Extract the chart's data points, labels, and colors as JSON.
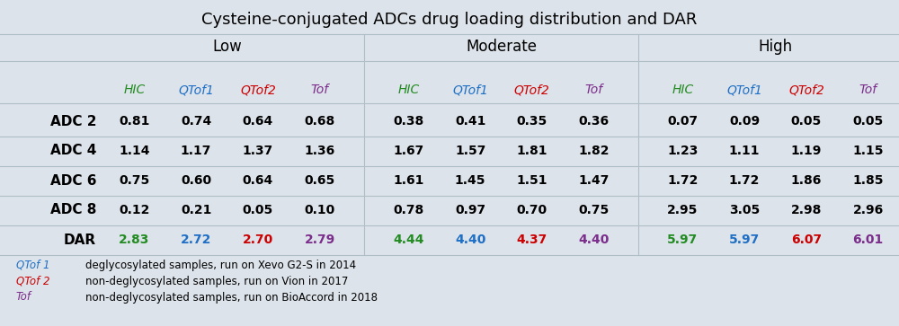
{
  "title": "Cysteine-conjugated ADCs drug loading distribution and DAR",
  "groups": [
    "Low",
    "Moderate",
    "High"
  ],
  "row_labels": [
    "ADC 2",
    "ADC 4",
    "ADC 6",
    "ADC 8",
    "DAR"
  ],
  "col_headers": [
    "HIC",
    "QTof1",
    "QTof2",
    "Tof"
  ],
  "col_colors": [
    "#228B22",
    "#1E6FC5",
    "#CC0000",
    "#7B2D8B"
  ],
  "data": {
    "Low": {
      "ADC 2": [
        "0.81",
        "0.74",
        "0.64",
        "0.68"
      ],
      "ADC 4": [
        "1.14",
        "1.17",
        "1.37",
        "1.36"
      ],
      "ADC 6": [
        "0.75",
        "0.60",
        "0.64",
        "0.65"
      ],
      "ADC 8": [
        "0.12",
        "0.21",
        "0.05",
        "0.10"
      ],
      "DAR": [
        "2.83",
        "2.72",
        "2.70",
        "2.79"
      ]
    },
    "Moderate": {
      "ADC 2": [
        "0.38",
        "0.41",
        "0.35",
        "0.36"
      ],
      "ADC 4": [
        "1.67",
        "1.57",
        "1.81",
        "1.82"
      ],
      "ADC 6": [
        "1.61",
        "1.45",
        "1.51",
        "1.47"
      ],
      "ADC 8": [
        "0.78",
        "0.97",
        "0.70",
        "0.75"
      ],
      "DAR": [
        "4.44",
        "4.40",
        "4.37",
        "4.40"
      ]
    },
    "High": {
      "ADC 2": [
        "0.07",
        "0.09",
        "0.05",
        "0.05"
      ],
      "ADC 4": [
        "1.23",
        "1.11",
        "1.19",
        "1.15"
      ],
      "ADC 6": [
        "1.72",
        "1.72",
        "1.86",
        "1.85"
      ],
      "ADC 8": [
        "2.95",
        "3.05",
        "2.98",
        "2.96"
      ],
      "DAR": [
        "5.97",
        "5.97",
        "6.07",
        "6.01"
      ]
    }
  },
  "dar_colors": [
    "#228B22",
    "#1E6FC5",
    "#CC0000",
    "#7B2D8B"
  ],
  "footnotes": [
    {
      "label": "QTof 1",
      "label_color": "#1E6FC5",
      "text": "deglycosylated samples, run on Xevo G2-S in 2014"
    },
    {
      "label": "QTof 2",
      "label_color": "#CC0000",
      "text": "non-deglycosylated samples, run on Vion in 2017"
    },
    {
      "label": "Tof",
      "label_color": "#7B2D8B",
      "text": "non-deglycosylated samples, run on BioAccord in 2018"
    }
  ],
  "bg_color": "#DDE3EA",
  "line_color": "#B0BEC5",
  "title_fontsize": 13,
  "group_fontsize": 12,
  "col_header_fontsize": 10,
  "data_fontsize": 10,
  "row_label_fontsize": 11,
  "footnote_fontsize": 8.5
}
